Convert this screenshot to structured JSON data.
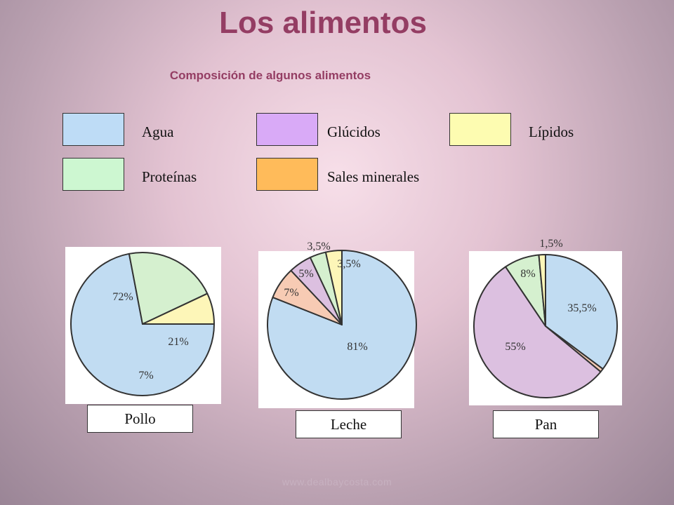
{
  "title": "Los alimentos",
  "subtitle": "Composición de algunos alimentos",
  "footer": "www.dealbaycosta.com",
  "legend": [
    {
      "label": "Agua",
      "color": "#bedcf6"
    },
    {
      "label": "Glúcidos",
      "color": "#d9aaf7"
    },
    {
      "label": "Lípidos",
      "color": "#fdfcb1"
    },
    {
      "label": "Proteínas",
      "color": "#cdf7d1"
    },
    {
      "label": "Sales minerales",
      "color": "#ffbb5a"
    }
  ],
  "chart_data": [
    {
      "type": "pie",
      "title": "Pollo",
      "slices": [
        {
          "component": "Agua",
          "value": 72,
          "label": "72%",
          "color": "#c1dcf2"
        },
        {
          "component": "Proteínas",
          "value": 21,
          "label": "21%",
          "color": "#d5f0cf"
        },
        {
          "component": "Lípidos",
          "value": 7,
          "label": "7%",
          "color": "#fdf6b8"
        }
      ]
    },
    {
      "type": "pie",
      "title": "Leche",
      "slices": [
        {
          "component": "Agua",
          "value": 81,
          "label": "81%",
          "color": "#c1dcf2"
        },
        {
          "component": "Sales minerales",
          "value": 7,
          "label": "7%",
          "color": "#f7cbb4"
        },
        {
          "component": "Glúcidos",
          "value": 5,
          "label": "5%",
          "color": "#dcc0e0"
        },
        {
          "component": "Proteínas",
          "value": 3.5,
          "label": "3,5%",
          "color": "#d5f0cf"
        },
        {
          "component": "Lípidos",
          "value": 3.5,
          "label": "3,5%",
          "color": "#fdf6b8"
        }
      ]
    },
    {
      "type": "pie",
      "title": "Pan",
      "slices": [
        {
          "component": "Agua",
          "value": 35.5,
          "label": "35,5%",
          "color": "#c1dcf2"
        },
        {
          "component": "Sales minerales",
          "value": 0.8,
          "label": "",
          "color": "#f7cbb4"
        },
        {
          "component": "Glúcidos",
          "value": 55,
          "label": "55%",
          "color": "#dcc0e0"
        },
        {
          "component": "Proteínas",
          "value": 8,
          "label": "8%",
          "color": "#d5f0cf"
        },
        {
          "component": "Lípidos",
          "value": 1.5,
          "label": "1,5%",
          "color": "#fdf6b8"
        }
      ]
    }
  ]
}
